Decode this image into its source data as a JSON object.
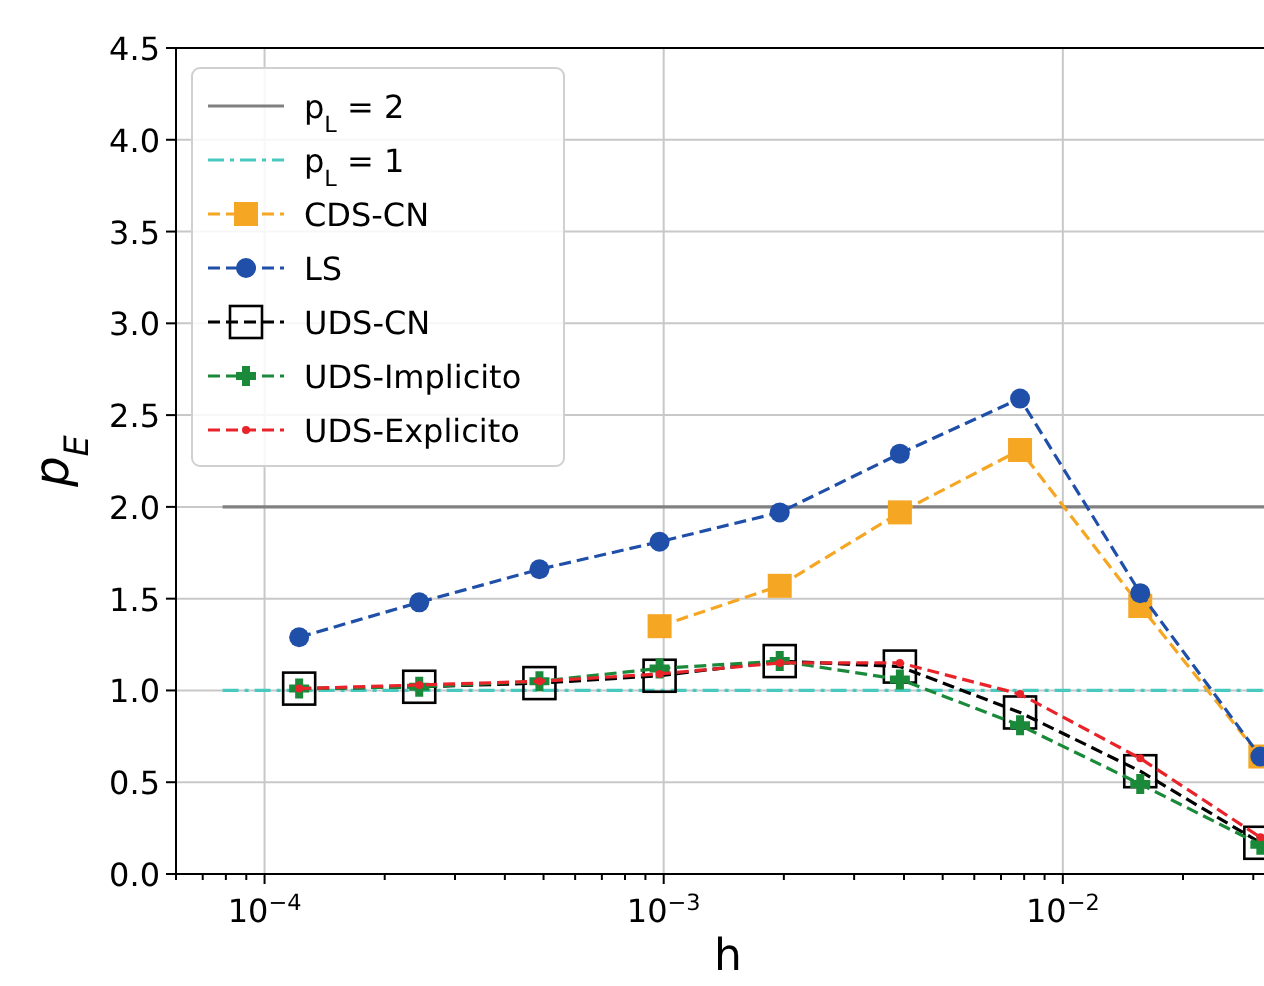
{
  "chart_data": {
    "type": "line",
    "xlabel": "h",
    "ylabel": "p$_{E}$",
    "log": "x",
    "grid": true,
    "legend": "top left",
    "xlim": [
      6e-05,
      0.035
    ],
    "ylim": [
      0,
      4.5
    ],
    "xticks": [
      {
        "value": 0.0001,
        "label": "10$^{−4}$"
      },
      {
        "value": 0.001,
        "label": "10$^{−3}$"
      },
      {
        "value": 0.01,
        "label": "10$^{−2}$"
      },
      {
        "value": 6e-05,
        "label": null
      },
      {
        "value": 7e-05,
        "label": null
      },
      {
        "value": 8e-05,
        "label": null
      },
      {
        "value": 9e-05,
        "label": null
      },
      {
        "value": 0.0002,
        "label": null
      },
      {
        "value": 0.0003,
        "label": null
      },
      {
        "value": 0.0004,
        "label": null
      },
      {
        "value": 0.0005,
        "label": null
      },
      {
        "value": 0.0006,
        "label": null
      },
      {
        "value": 0.0007,
        "label": null
      },
      {
        "value": 0.0008,
        "label": null
      },
      {
        "value": 0.0009,
        "label": null
      },
      {
        "value": 0.002,
        "label": null
      },
      {
        "value": 0.003,
        "label": null
      },
      {
        "value": 0.004,
        "label": null
      },
      {
        "value": 0.005,
        "label": null
      },
      {
        "value": 0.006,
        "label": null
      },
      {
        "value": 0.007,
        "label": null
      },
      {
        "value": 0.008,
        "label": null
      },
      {
        "value": 0.009,
        "label": null
      },
      {
        "value": 0.02,
        "label": null
      },
      {
        "value": 0.03,
        "label": null
      }
    ],
    "yticks": [
      {
        "value": 0,
        "label": "0.0"
      },
      0.5,
      {
        "value": 1,
        "label": "1.0"
      },
      1.5,
      {
        "value": 2,
        "label": "2.0"
      },
      2.5,
      {
        "value": 3,
        "label": "3.0"
      },
      3.5,
      {
        "value": 4,
        "label": "4.0"
      },
      4.5
    ],
    "series": [
      {
        "name": "p$_{L}$ = 2",
        "color": "#808080",
        "line_style": "solid",
        "marker": "none",
        "x": [
          7.85e-05,
          0.035
        ],
        "values": [
          2,
          2
        ]
      },
      {
        "name": "p$_{L}$ = 1",
        "color": "#48c9c0",
        "line_style": "dashdot",
        "marker": "none",
        "x": [
          7.85e-05,
          0.035
        ],
        "values": [
          1,
          1
        ]
      },
      {
        "name": "CDS-CN",
        "color": "#f5a623",
        "line_style": "dashed",
        "marker": "square",
        "x": [
          0.0009766,
          0.001953,
          0.003906,
          0.007813,
          0.01563,
          0.03125
        ],
        "values": [
          1.35,
          1.57,
          1.97,
          2.31,
          1.46,
          0.64
        ]
      },
      {
        "name": "LS",
        "color": "#1f4fa8",
        "line_style": "dashed",
        "marker": "circle",
        "x": [
          0.0001221,
          0.0002441,
          0.0004883,
          0.0009766,
          0.001953,
          0.003906,
          0.007813,
          0.01563,
          0.03125
        ],
        "values": [
          1.29,
          1.48,
          1.66,
          1.81,
          1.97,
          2.29,
          2.59,
          1.53,
          0.64
        ]
      },
      {
        "name": "UDS-CN",
        "color": "#000000",
        "line_style": "dashed",
        "marker": "square",
        "x": [
          0.0001221,
          0.0002441,
          0.0004883,
          0.0009766,
          0.001953,
          0.003906,
          0.007813,
          0.01563,
          0.03125
        ],
        "values": [
          1.01,
          1.02,
          1.04,
          1.08,
          1.16,
          1.13,
          0.88,
          0.56,
          0.17
        ]
      },
      {
        "name": "UDS-Implicito",
        "color": "#1a8a3a",
        "line_style": "dashed",
        "marker": "cross",
        "x": [
          0.0001221,
          0.0002441,
          0.0004883,
          0.0009766,
          0.001953,
          0.003906,
          0.007813,
          0.01563,
          0.03125
        ],
        "values": [
          1.01,
          1.02,
          1.05,
          1.12,
          1.16,
          1.06,
          0.81,
          0.49,
          0.16
        ]
      },
      {
        "name": "UDS-Explicito",
        "color": "#e8242a",
        "line_style": "dashed",
        "marker": "circle",
        "x": [
          0.0001221,
          0.0002441,
          0.0004883,
          0.0009766,
          0.001953,
          0.003906,
          0.007813,
          0.01563,
          0.03125
        ],
        "values": [
          1.01,
          1.03,
          1.05,
          1.09,
          1.15,
          1.15,
          0.98,
          0.63,
          0.2
        ]
      }
    ]
  }
}
